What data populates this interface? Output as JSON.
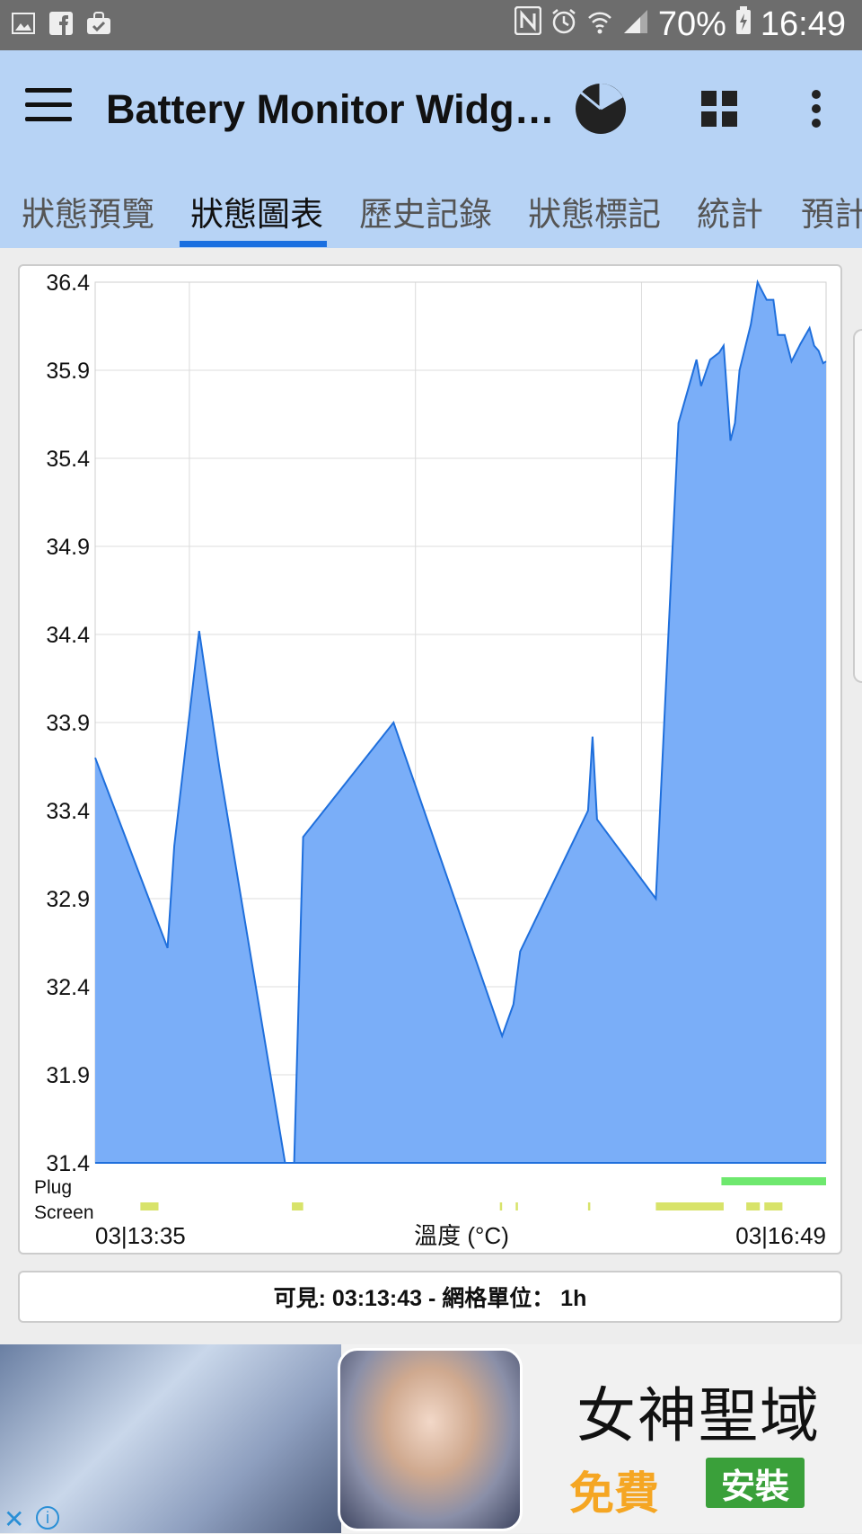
{
  "status_bar": {
    "battery_percent": "70%",
    "time": "16:49",
    "left_icons": [
      "image-icon",
      "facebook-icon",
      "shopping-bag-icon"
    ],
    "right_icons": [
      "nfc-icon",
      "alarm-icon",
      "wifi-icon",
      "signal-icon",
      "battery-charging-icon"
    ]
  },
  "app_bar": {
    "title": "Battery Monitor Widg…",
    "actions": [
      "pie-chart-icon",
      "grid-icon",
      "more-vert-icon"
    ]
  },
  "tabs": [
    {
      "label": "狀態預覽",
      "active": false
    },
    {
      "label": "狀態圖表",
      "active": true
    },
    {
      "label": "歷史記錄",
      "active": false
    },
    {
      "label": "狀態標記",
      "active": false
    },
    {
      "label": "統計",
      "active": false
    },
    {
      "label": "預計",
      "active": false
    }
  ],
  "chart_data": {
    "type": "area",
    "title": "",
    "xlabel": "溫度 (°C)",
    "ylabel": "",
    "ylim": [
      31.4,
      36.4
    ],
    "y_ticks": [
      "36.4",
      "35.9",
      "35.4",
      "34.9",
      "34.4",
      "33.9",
      "33.4",
      "32.9",
      "32.4",
      "31.9",
      "31.4"
    ],
    "x_start_label": "03|13:35",
    "x_end_label": "03|16:49",
    "x_unit": "hours since 03|13:35",
    "x_range": [
      0,
      3.233
    ],
    "grid": true,
    "fill_color": "#7aaef8",
    "line_color": "#1f6fdc",
    "points": [
      [
        0,
        33.7
      ],
      [
        0.32,
        32.62
      ],
      [
        0.35,
        33.2
      ],
      [
        0.46,
        34.42
      ],
      [
        0.52,
        33.9
      ],
      [
        0.55,
        33.64
      ],
      [
        0.84,
        31.4
      ],
      [
        0.88,
        31.4
      ],
      [
        0.92,
        33.25
      ],
      [
        1.32,
        33.9
      ],
      [
        1.8,
        32.12
      ],
      [
        1.85,
        32.3
      ],
      [
        1.88,
        32.6
      ],
      [
        2.18,
        33.4
      ],
      [
        2.2,
        33.82
      ],
      [
        2.22,
        33.35
      ],
      [
        2.48,
        32.9
      ],
      [
        2.58,
        35.6
      ],
      [
        2.66,
        35.96
      ],
      [
        2.68,
        35.81
      ],
      [
        2.72,
        35.96
      ],
      [
        2.76,
        36.0
      ],
      [
        2.78,
        36.04
      ],
      [
        2.81,
        35.5
      ],
      [
        2.83,
        35.6
      ],
      [
        2.85,
        35.9
      ],
      [
        2.9,
        36.16
      ],
      [
        2.93,
        36.4
      ],
      [
        2.95,
        36.35
      ],
      [
        2.97,
        36.3
      ],
      [
        3.0,
        36.3
      ],
      [
        3.02,
        36.1
      ],
      [
        3.05,
        36.1
      ],
      [
        3.08,
        35.95
      ],
      [
        3.12,
        36.05
      ],
      [
        3.16,
        36.14
      ],
      [
        3.18,
        36.04
      ],
      [
        3.2,
        36.01
      ],
      [
        3.22,
        35.94
      ],
      [
        3.233,
        35.95
      ]
    ],
    "plug_label": "Plug",
    "screen_label": "Screen",
    "plug_color": "#6ee86e",
    "screen_color": "#d8e36a",
    "plug_segments": [
      [
        2.77,
        3.233
      ]
    ],
    "screen_segments": [
      [
        0.2,
        0.28
      ],
      [
        0.87,
        0.92
      ],
      [
        1.79,
        1.8
      ],
      [
        1.86,
        1.87
      ],
      [
        2.18,
        2.19
      ],
      [
        2.48,
        2.78
      ],
      [
        2.88,
        2.94
      ],
      [
        2.96,
        3.04
      ]
    ]
  },
  "info_bar": {
    "text": "可見: 03:13:43 - 網格單位： 1h"
  },
  "ad": {
    "title": "女神聖域",
    "free_label": "免費",
    "install_label": "安裝",
    "close_label": "✕",
    "info_label": "i"
  }
}
